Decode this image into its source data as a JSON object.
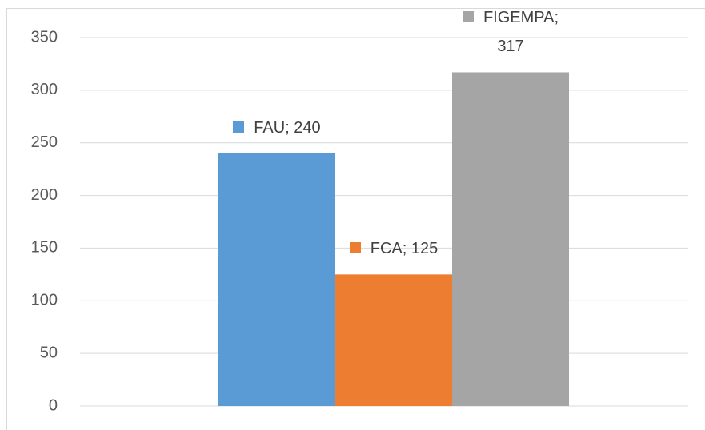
{
  "chart_data": {
    "type": "bar",
    "categories": [
      null
    ],
    "series": [
      {
        "name": "FAU",
        "color": "#5b9bd5",
        "values": [
          240
        ],
        "value_labels": [
          "FAU; 240"
        ]
      },
      {
        "name": "FCA",
        "color": "#ed7d31",
        "values": [
          125
        ],
        "value_labels": [
          "FCA; 125"
        ]
      },
      {
        "name": "FIGEMPA",
        "color": "#a5a5a5",
        "values": [
          317
        ],
        "value_labels": [
          "FIGEMPA; 317"
        ]
      }
    ],
    "ylim": [
      0,
      350
    ],
    "yticks": [
      0,
      50,
      100,
      150,
      200,
      250,
      300,
      350
    ],
    "grid": true
  }
}
